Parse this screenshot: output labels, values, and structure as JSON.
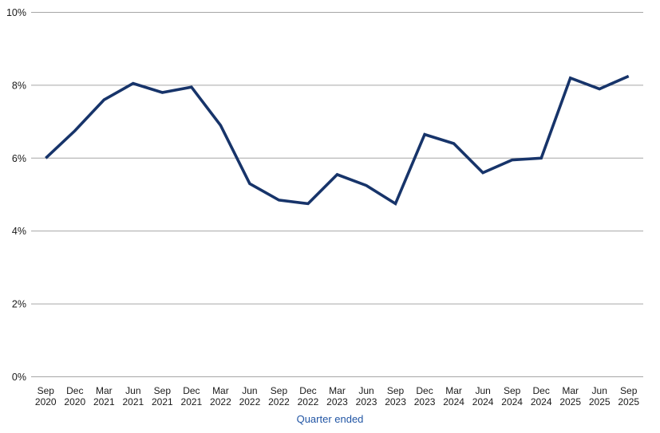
{
  "chart_data": {
    "type": "line",
    "title": "",
    "xlabel": "Quarter ended",
    "ylabel": "",
    "categories": [
      "Sep 2020",
      "Dec 2020",
      "Mar 2021",
      "Jun 2021",
      "Sep 2021",
      "Dec 2021",
      "Mar 2022",
      "Jun 2022",
      "Sep 2022",
      "Dec 2022",
      "Mar 2023",
      "Jun 2023",
      "Sep 2023",
      "Dec 2023",
      "Mar 2024",
      "Jun 2024",
      "Sep 2024",
      "Dec 2024",
      "Mar 2025",
      "Jun 2025",
      "Sep 2025"
    ],
    "values": [
      6.0,
      6.75,
      7.6,
      8.05,
      7.8,
      7.95,
      6.9,
      5.3,
      4.85,
      4.75,
      5.55,
      5.25,
      4.75,
      6.65,
      6.4,
      5.6,
      5.95,
      6.0,
      8.2,
      7.9,
      8.25
    ],
    "ylim": [
      0,
      10
    ],
    "yticks": [
      0,
      2,
      4,
      6,
      8,
      10
    ],
    "ytick_suffix": "%",
    "grid": "horizontal",
    "legend_position": "none",
    "colors": {
      "line": "#17346a",
      "gridline": "#a6a6a6",
      "tick_label": "#1a1a1a",
      "xlabel": "#2155a4"
    }
  }
}
